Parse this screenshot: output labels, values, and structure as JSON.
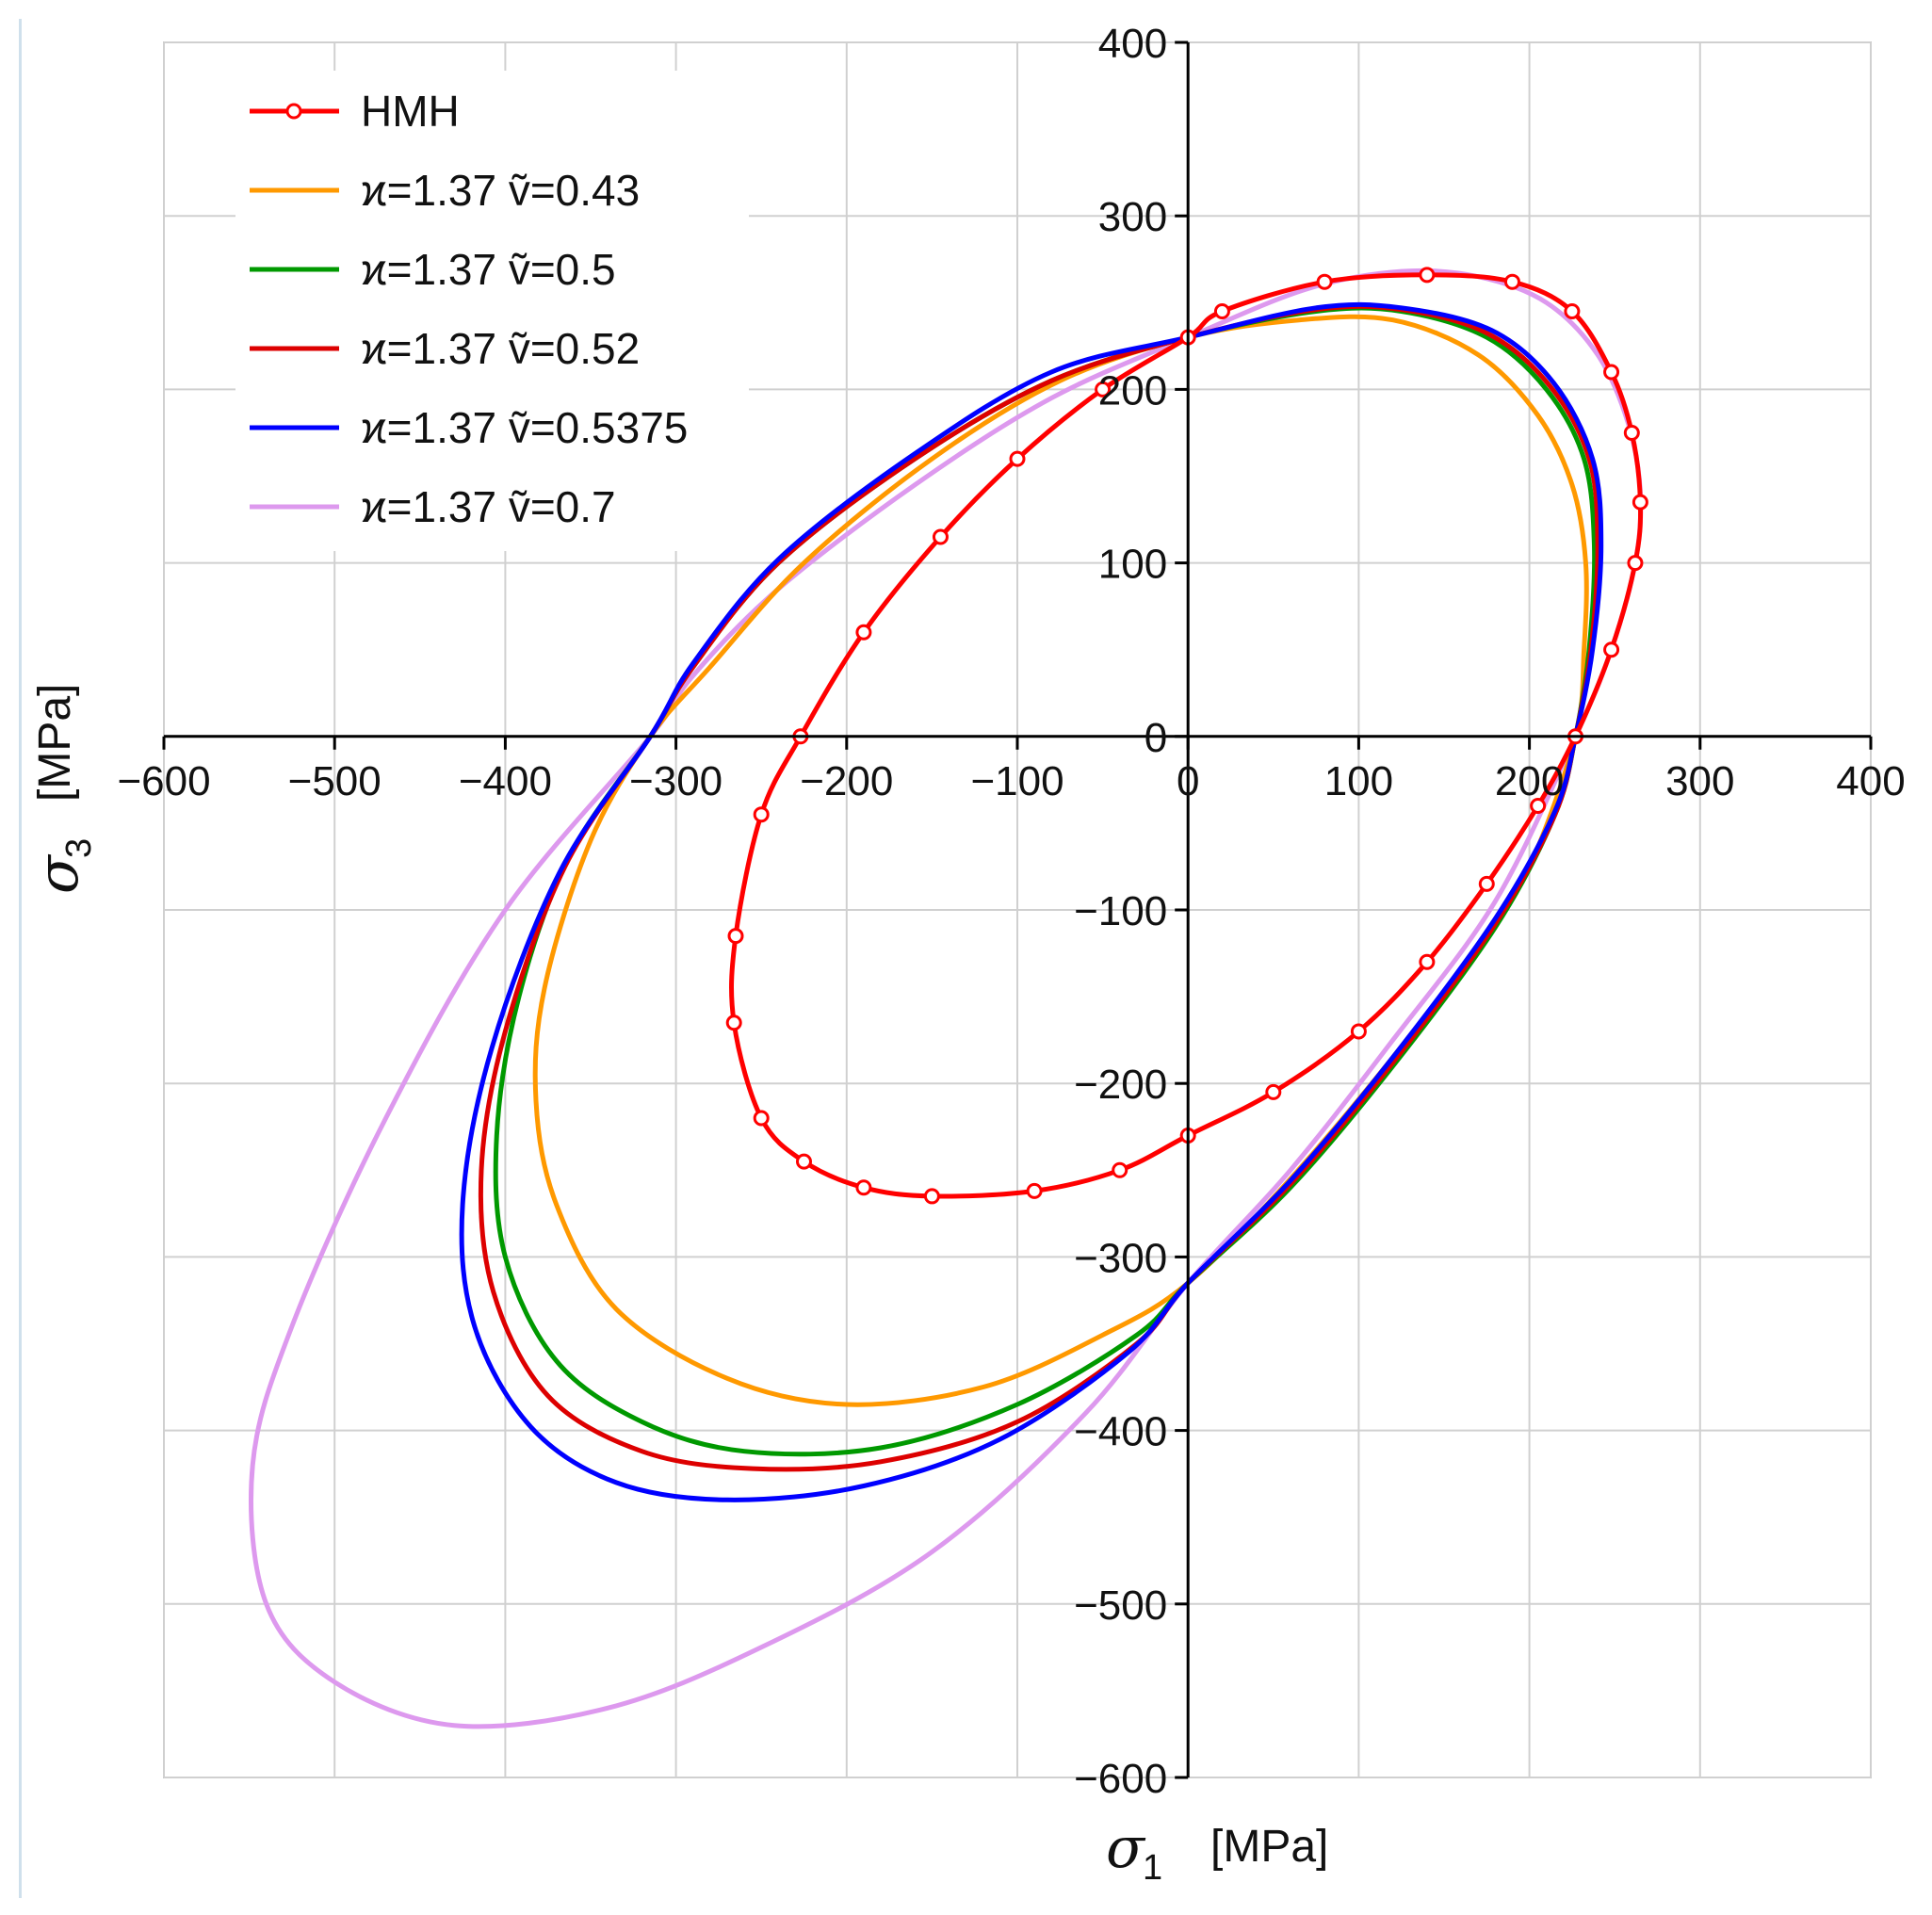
{
  "chart_data": {
    "type": "line",
    "title": "",
    "x_axis": {
      "symbol": "σ",
      "subscript": "1",
      "unit": "[MPa]",
      "range": [
        -600,
        400
      ],
      "ticks": [
        -600,
        -500,
        -400,
        -300,
        -200,
        -100,
        0,
        100,
        200,
        300,
        400
      ],
      "tick_labels": [
        "−600",
        "−500",
        "−400",
        "−300",
        "−200",
        "−100",
        "0",
        "100",
        "200",
        "300",
        "400"
      ]
    },
    "y_axis": {
      "symbol": "σ",
      "subscript": "3",
      "unit": "[MPa]",
      "range": [
        -600,
        400
      ],
      "ticks": [
        -600,
        -500,
        -400,
        -300,
        -200,
        -100,
        0,
        100,
        200,
        300,
        400
      ],
      "tick_labels": [
        "−600",
        "−500",
        "−400",
        "−300",
        "−200",
        "−100",
        "0",
        "100",
        "200",
        "300",
        "400"
      ]
    },
    "grid": true,
    "legend_position": "top-left",
    "series": [
      {
        "name": "HMH",
        "color": "#ff0000",
        "markers": true,
        "points": [
          [
            -227,
            0
          ],
          [
            -250,
            -45
          ],
          [
            -265,
            -115
          ],
          [
            -266,
            -165
          ],
          [
            -250,
            -220
          ],
          [
            -225,
            -245
          ],
          [
            -190,
            -260
          ],
          [
            -150,
            -265
          ],
          [
            -90,
            -262
          ],
          [
            -40,
            -250
          ],
          [
            0,
            -230
          ],
          [
            50,
            -205
          ],
          [
            100,
            -170
          ],
          [
            140,
            -130
          ],
          [
            175,
            -85
          ],
          [
            205,
            -40
          ],
          [
            227,
            0
          ],
          [
            248,
            50
          ],
          [
            262,
            100
          ],
          [
            265,
            135
          ],
          [
            260,
            175
          ],
          [
            248,
            210
          ],
          [
            225,
            245
          ],
          [
            190,
            262
          ],
          [
            140,
            266
          ],
          [
            80,
            262
          ],
          [
            20,
            245
          ],
          [
            0,
            230
          ],
          [
            -50,
            200
          ],
          [
            -100,
            160
          ],
          [
            -145,
            115
          ],
          [
            -190,
            60
          ],
          [
            -227,
            0
          ]
        ]
      },
      {
        "name": "ϰ=1.37  ṽ=0.43",
        "color": "#ff9900",
        "markers": false,
        "points": [
          [
            -315,
            0
          ],
          [
            -350,
            -60
          ],
          [
            -377,
            -145
          ],
          [
            -382,
            -210
          ],
          [
            -370,
            -270
          ],
          [
            -335,
            -330
          ],
          [
            -270,
            -370
          ],
          [
            -200,
            -385
          ],
          [
            -120,
            -375
          ],
          [
            -50,
            -345
          ],
          [
            0,
            -315
          ],
          [
            60,
            -255
          ],
          [
            120,
            -185
          ],
          [
            170,
            -120
          ],
          [
            200,
            -75
          ],
          [
            227,
            0
          ],
          [
            232,
            50
          ],
          [
            233,
            100
          ],
          [
            225,
            145
          ],
          [
            205,
            185
          ],
          [
            170,
            220
          ],
          [
            120,
            240
          ],
          [
            65,
            240
          ],
          [
            0,
            230
          ],
          [
            -75,
            205
          ],
          [
            -150,
            160
          ],
          [
            -225,
            100
          ],
          [
            -280,
            40
          ],
          [
            -315,
            0
          ]
        ]
      },
      {
        "name": "ϰ=1.37  ṽ=0.5",
        "color": "#009900",
        "markers": false,
        "points": [
          [
            -315,
            0
          ],
          [
            -363,
            -70
          ],
          [
            -392,
            -150
          ],
          [
            -405,
            -230
          ],
          [
            -400,
            -300
          ],
          [
            -370,
            -360
          ],
          [
            -320,
            -395
          ],
          [
            -260,
            -412
          ],
          [
            -180,
            -410
          ],
          [
            -100,
            -385
          ],
          [
            -30,
            -345
          ],
          [
            0,
            -315
          ],
          [
            60,
            -260
          ],
          [
            120,
            -190
          ],
          [
            180,
            -110
          ],
          [
            215,
            -45
          ],
          [
            227,
            0
          ],
          [
            235,
            50
          ],
          [
            238,
            110
          ],
          [
            232,
            160
          ],
          [
            210,
            200
          ],
          [
            175,
            230
          ],
          [
            125,
            245
          ],
          [
            75,
            245
          ],
          [
            0,
            230
          ],
          [
            -80,
            205
          ],
          [
            -160,
            160
          ],
          [
            -240,
            100
          ],
          [
            -290,
            40
          ],
          [
            -315,
            0
          ]
        ]
      },
      {
        "name": "ϰ=1.37  ṽ=0.52",
        "color": "#dd0000",
        "markers": false,
        "points": [
          [
            -315,
            0
          ],
          [
            -365,
            -75
          ],
          [
            -400,
            -170
          ],
          [
            -414,
            -250
          ],
          [
            -407,
            -320
          ],
          [
            -375,
            -380
          ],
          [
            -320,
            -412
          ],
          [
            -255,
            -422
          ],
          [
            -180,
            -418
          ],
          [
            -100,
            -395
          ],
          [
            -30,
            -350
          ],
          [
            0,
            -315
          ],
          [
            60,
            -258
          ],
          [
            120,
            -188
          ],
          [
            180,
            -108
          ],
          [
            215,
            -45
          ],
          [
            227,
            0
          ],
          [
            236,
            50
          ],
          [
            240,
            110
          ],
          [
            235,
            160
          ],
          [
            212,
            202
          ],
          [
            176,
            232
          ],
          [
            125,
            246
          ],
          [
            75,
            246
          ],
          [
            0,
            230
          ],
          [
            -80,
            205
          ],
          [
            -160,
            160
          ],
          [
            -240,
            100
          ],
          [
            -290,
            40
          ],
          [
            -315,
            0
          ]
        ]
      },
      {
        "name": "ϰ=1.37  ṽ=0.5375",
        "color": "#0000ff",
        "markers": false,
        "points": [
          [
            -315,
            0
          ],
          [
            -368,
            -78
          ],
          [
            -408,
            -180
          ],
          [
            -425,
            -270
          ],
          [
            -418,
            -340
          ],
          [
            -385,
            -398
          ],
          [
            -335,
            -430
          ],
          [
            -270,
            -440
          ],
          [
            -190,
            -432
          ],
          [
            -110,
            -405
          ],
          [
            -35,
            -355
          ],
          [
            0,
            -315
          ],
          [
            60,
            -256
          ],
          [
            120,
            -185
          ],
          [
            180,
            -105
          ],
          [
            215,
            -43
          ],
          [
            227,
            0
          ],
          [
            237,
            50
          ],
          [
            242,
            110
          ],
          [
            237,
            160
          ],
          [
            214,
            204
          ],
          [
            178,
            234
          ],
          [
            125,
            247
          ],
          [
            75,
            247
          ],
          [
            0,
            230
          ],
          [
            -80,
            210
          ],
          [
            -160,
            163
          ],
          [
            -240,
            102
          ],
          [
            -290,
            42
          ],
          [
            -315,
            0
          ]
        ]
      },
      {
        "name": "ϰ=1.37  ṽ=0.7",
        "color": "#dd99ee",
        "markers": false,
        "points": [
          [
            -315,
            0
          ],
          [
            -400,
            -100
          ],
          [
            -470,
            -220
          ],
          [
            -525,
            -340
          ],
          [
            -548,
            -420
          ],
          [
            -540,
            -500
          ],
          [
            -500,
            -545
          ],
          [
            -430,
            -570
          ],
          [
            -340,
            -560
          ],
          [
            -250,
            -525
          ],
          [
            -150,
            -470
          ],
          [
            -60,
            -390
          ],
          [
            0,
            -315
          ],
          [
            60,
            -250
          ],
          [
            120,
            -175
          ],
          [
            180,
            -95
          ],
          [
            227,
            0
          ],
          [
            248,
            50
          ],
          [
            262,
            100
          ],
          [
            265,
            140
          ],
          [
            258,
            180
          ],
          [
            240,
            220
          ],
          [
            210,
            250
          ],
          [
            170,
            265
          ],
          [
            125,
            268
          ],
          [
            70,
            258
          ],
          [
            0,
            230
          ],
          [
            -80,
            195
          ],
          [
            -160,
            145
          ],
          [
            -240,
            85
          ],
          [
            -290,
            35
          ],
          [
            -315,
            0
          ]
        ]
      }
    ]
  }
}
